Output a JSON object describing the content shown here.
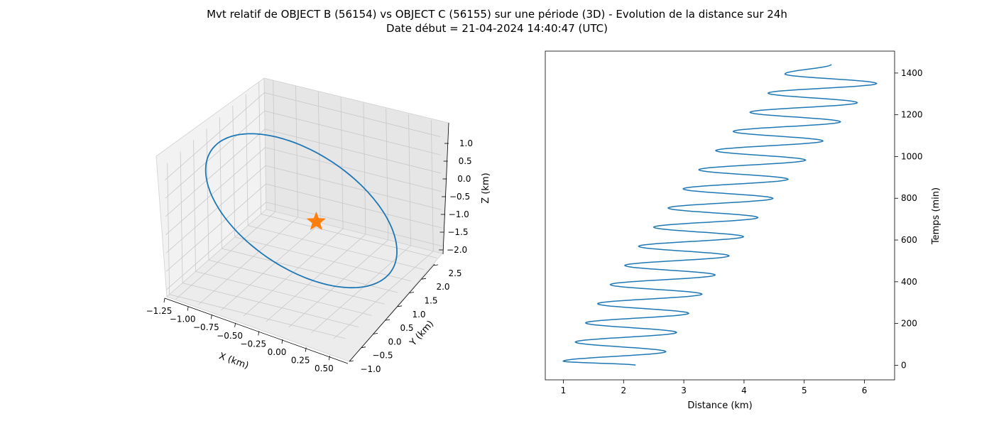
{
  "page": {
    "title_line1": "Mvt relatif de OBJECT B (56154) vs OBJECT C (56155) sur une période (3D) - Evolution de la distance sur 24h",
    "title_line2": "Date début = 21-04-2024 14:40:47 (UTC)"
  },
  "colors": {
    "series": "#1f77b4",
    "marker": "#ff7f0e",
    "pane_left": "#f2f2f2",
    "pane_right": "#e6e6e6",
    "pane_floor": "#ececec",
    "grid": "#c8c8c8"
  },
  "chart_data": [
    {
      "type": "line3d",
      "xlabel": "X (km)",
      "ylabel": "Y (km)",
      "zlabel": "Z (km)",
      "x_ticks": [
        "−1.25",
        "−1.00",
        "−0.75",
        "−0.50",
        "−0.25",
        "0.00",
        "0.25",
        "0.50"
      ],
      "y_ticks": [
        "−1.0",
        "−0.5",
        "0.0",
        "0.5",
        "1.0",
        "1.5",
        "2.0",
        "2.5"
      ],
      "z_ticks": [
        "1.0",
        "0.5",
        "0.0",
        "−0.5",
        "−1.0",
        "−1.5",
        "−2.0"
      ],
      "xlim": [
        -1.35,
        0.6
      ],
      "ylim": [
        -1.1,
        2.7
      ],
      "zlim": [
        -2.2,
        1.4
      ],
      "orbit": {
        "center": [
          -0.4,
          0.8,
          -0.45
        ],
        "u": [
          -0.8,
          -0.4,
          1.6
        ],
        "v": [
          0.05,
          1.6,
          0.05
        ]
      },
      "marker": {
        "shape": "star",
        "x": 0.0,
        "y": 0.0,
        "z": 0.0
      },
      "grid": true
    },
    {
      "type": "line",
      "xlabel": "Distance (km)",
      "ylabel": "Temps (min)",
      "x_ticks": [
        "1",
        "2",
        "3",
        "4",
        "5",
        "6"
      ],
      "y_ticks": [
        "0",
        "200",
        "400",
        "600",
        "800",
        "1000",
        "1200",
        "1400"
      ],
      "xlim": [
        0.7,
        6.5
      ],
      "ylim": [
        -70,
        1505
      ],
      "y_axis_position": "right",
      "grid": false,
      "series": [
        {
          "peaks": [
            [
              0,
              2.2
            ],
            [
              25,
              1.0
            ],
            [
              84,
              2.7
            ],
            [
              143,
              1.2
            ],
            [
              202,
              2.88
            ],
            [
              261,
              1.37
            ],
            [
              320,
              3.08
            ],
            [
              379,
              1.57
            ],
            [
              438,
              3.3
            ],
            [
              497,
              1.78
            ],
            [
              556,
              3.52
            ],
            [
              615,
              2.02
            ],
            [
              674,
              3.75
            ],
            [
              733,
              2.25
            ],
            [
              792,
              3.99
            ],
            [
              851,
              2.5
            ],
            [
              910,
              4.23
            ],
            [
              969,
              2.74
            ],
            [
              1028,
              4.48
            ],
            [
              1087,
              2.99
            ],
            [
              1146,
              4.73
            ],
            [
              1205,
              3.25
            ],
            [
              1264,
              5.02
            ],
            [
              1323,
              3.53
            ],
            [
              1382,
              5.31
            ],
            [
              1441,
              3.82
            ],
            [
              1500,
              5.6
            ],
            [
              1559,
              4.1
            ],
            [
              1618,
              5.88
            ],
            [
              1677,
              4.4
            ],
            [
              1736,
              6.2
            ],
            [
              1795,
              4.68
            ],
            [
              1854,
              5.45
            ]
          ],
          "time_scale": 0.7775
        }
      ]
    }
  ]
}
